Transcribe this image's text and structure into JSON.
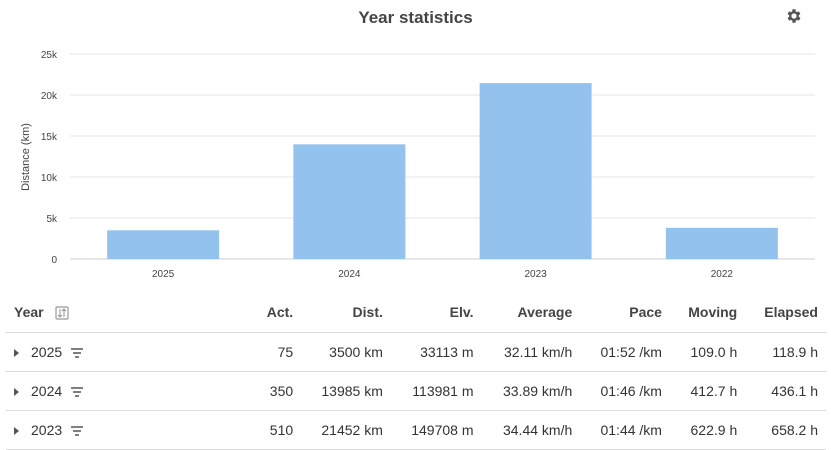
{
  "title": "Year statistics",
  "icons": {
    "settings": "gear-icon",
    "sort": "sort-icon",
    "row_filter": "filter-icon",
    "expand": "caret-right-icon"
  },
  "colors": {
    "bar": "#94c2ef",
    "grid": "#e6e6e6"
  },
  "chart_data": {
    "type": "bar",
    "categories": [
      "2025",
      "2024",
      "2023",
      "2022"
    ],
    "values": [
      3500,
      13985,
      21452,
      3800
    ],
    "ylabel": "Distance (km)",
    "ylim": [
      0,
      25000
    ],
    "yticks": [
      0,
      5000,
      10000,
      15000,
      20000,
      25000
    ],
    "ytick_labels": [
      "0",
      "5k",
      "10k",
      "15k",
      "20k",
      "25k"
    ],
    "grid": true
  },
  "table": {
    "headers": {
      "year": "Year",
      "act": "Act.",
      "dist": "Dist.",
      "elv": "Elv.",
      "average": "Average",
      "pace": "Pace",
      "moving": "Moving",
      "elapsed": "Elapsed"
    },
    "rows": [
      {
        "year": "2025",
        "act": "75",
        "dist": "3500 km",
        "elv": "33113 m",
        "average": "32.11 km/h",
        "pace": "01:52 /km",
        "moving": "109.0 h",
        "elapsed": "118.9 h"
      },
      {
        "year": "2024",
        "act": "350",
        "dist": "13985 km",
        "elv": "113981 m",
        "average": "33.89 km/h",
        "pace": "01:46 /km",
        "moving": "412.7 h",
        "elapsed": "436.1 h"
      },
      {
        "year": "2023",
        "act": "510",
        "dist": "21452 km",
        "elv": "149708 m",
        "average": "34.44 km/h",
        "pace": "01:44 /km",
        "moving": "622.9 h",
        "elapsed": "658.2 h"
      }
    ]
  }
}
